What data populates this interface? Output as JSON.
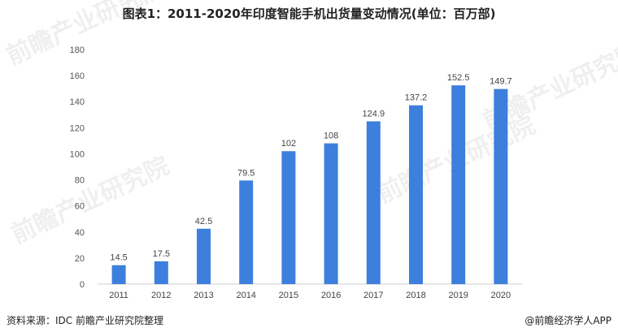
{
  "chart_data": {
    "type": "bar",
    "title": "图表1：2011-2020年印度智能手机出货量变动情况(单位：百万部)",
    "categories": [
      "2011",
      "2012",
      "2013",
      "2014",
      "2015",
      "2016",
      "2017",
      "2018",
      "2019",
      "2020"
    ],
    "values": [
      14.5,
      17.5,
      42.5,
      79.5,
      102,
      108,
      124.9,
      137.2,
      152.5,
      149.7
    ],
    "value_labels": [
      "14.5",
      "17.5",
      "42.5",
      "79.5",
      "102",
      "108",
      "124.9",
      "137.2",
      "152.5",
      "149.7"
    ],
    "ylim": [
      0,
      180
    ],
    "yticks": [
      "0",
      "20",
      "40",
      "60",
      "80",
      "100",
      "120",
      "140",
      "160",
      "180"
    ],
    "grid": false,
    "legend": "none",
    "bar_color": "#3d7fdc"
  },
  "footer": {
    "source": "资料来源：IDC 前瞻产业研究院整理",
    "brand": "@前瞻经济学人APP"
  },
  "watermark": {
    "text": "前瞻产业研究院"
  }
}
